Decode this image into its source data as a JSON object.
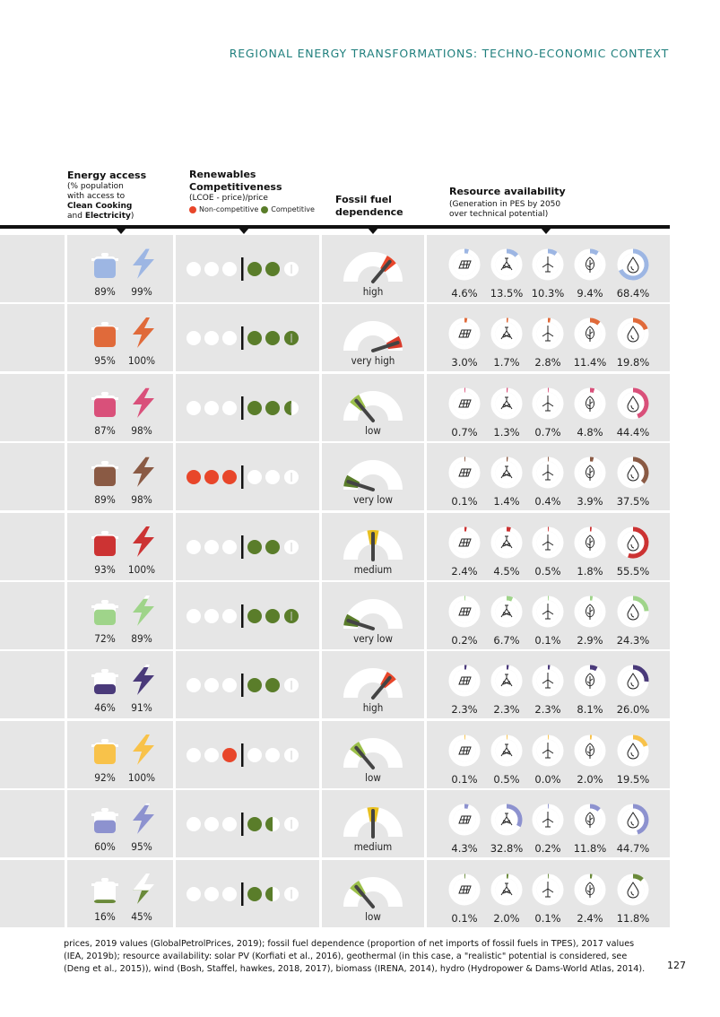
{
  "header": {
    "title": "REGIONAL ENERGY TRANSFORMATIONS: TECHNO-ECONOMIC CONTEXT"
  },
  "columns": {
    "energy_access": {
      "title": "Energy access",
      "sub1": "(% population",
      "sub2": "with access to",
      "sub3": "Clean Cooking",
      "sub4": "and",
      "sub5": "Electricity",
      "sub6": ")"
    },
    "renewables": {
      "title1": "Renewables",
      "title2": "Competitiveness",
      "sub": "(LCOE - price)/price",
      "legend_non": "Non-competitive",
      "legend_comp": "Competitive"
    },
    "fossil": {
      "title1": "Fossil fuel",
      "title2": "dependence"
    },
    "resource": {
      "title": "Resource availability",
      "sub1": "(Generation in PES by 2050",
      "sub2": "over technical potential)"
    }
  },
  "colors": {
    "red": "#e8462a",
    "green": "#5a7d2a",
    "grey_dot": "#ffffff",
    "gauge_track": "#ffffff"
  },
  "rows": [
    {
      "color": "#9db6e3",
      "cooking": "89%",
      "electricity": "99%",
      "reds": 0,
      "greens": 2,
      "half": false,
      "gauge_level": "high",
      "gauge_color": "#e8462a",
      "gauge_angle": 40,
      "resources": [
        "4.6%",
        "13.5%",
        "10.3%",
        "9.4%",
        "68.4%"
      ],
      "res_values": [
        4.6,
        13.5,
        10.3,
        9.4,
        68.4
      ]
    },
    {
      "color": "#e06a3a",
      "cooking": "95%",
      "electricity": "100%",
      "reds": 0,
      "greens": 3,
      "half": false,
      "gauge_level": "very high",
      "gauge_color": "#d83a2a",
      "gauge_angle": 72,
      "resources": [
        "3.0%",
        "1.7%",
        "2.8%",
        "11.4%",
        "19.8%"
      ],
      "res_values": [
        3.0,
        1.7,
        2.8,
        11.4,
        19.8
      ]
    },
    {
      "color": "#d9507a",
      "cooking": "87%",
      "electricity": "98%",
      "reds": 0,
      "greens": 2,
      "half": true,
      "gauge_level": "low",
      "gauge_color": "#9cc04a",
      "gauge_angle": -40,
      "resources": [
        "0.7%",
        "1.3%",
        "0.7%",
        "4.8%",
        "44.4%"
      ],
      "res_values": [
        0.7,
        1.3,
        0.7,
        4.8,
        44.4
      ]
    },
    {
      "color": "#8a5a44",
      "cooking": "89%",
      "electricity": "98%",
      "reds": 3,
      "greens": 0,
      "half": false,
      "gauge_level": "very low",
      "gauge_color": "#5a7d2a",
      "gauge_angle": -72,
      "resources": [
        "0.1%",
        "1.4%",
        "0.4%",
        "3.9%",
        "37.5%"
      ],
      "res_values": [
        0.1,
        1.4,
        0.4,
        3.9,
        37.5
      ]
    },
    {
      "color": "#cc3333",
      "cooking": "93%",
      "electricity": "100%",
      "reds": 0,
      "greens": 2,
      "half": false,
      "gauge_level": "medium",
      "gauge_color": "#e8c020",
      "gauge_angle": 0,
      "resources": [
        "2.4%",
        "4.5%",
        "0.5%",
        "1.8%",
        "55.5%"
      ],
      "res_values": [
        2.4,
        4.5,
        0.5,
        1.8,
        55.5
      ]
    },
    {
      "color": "#9fd48a",
      "cooking": "72%",
      "electricity": "89%",
      "reds": 0,
      "greens": 3,
      "half": false,
      "gauge_level": "very low",
      "gauge_color": "#5a7d2a",
      "gauge_angle": -72,
      "resources": [
        "0.2%",
        "6.7%",
        "0.1%",
        "2.9%",
        "24.3%"
      ],
      "res_values": [
        0.2,
        6.7,
        0.1,
        2.9,
        24.3
      ]
    },
    {
      "color": "#4a3a7a",
      "cooking": "46%",
      "electricity": "91%",
      "reds": 0,
      "greens": 2,
      "half": false,
      "gauge_level": "high",
      "gauge_color": "#e8462a",
      "gauge_angle": 40,
      "resources": [
        "2.3%",
        "2.3%",
        "2.3%",
        "8.1%",
        "26.0%"
      ],
      "res_values": [
        2.3,
        2.3,
        2.3,
        8.1,
        26.0
      ]
    },
    {
      "color": "#f8c24a",
      "cooking": "92%",
      "electricity": "100%",
      "reds": 1,
      "greens": 0,
      "half": false,
      "gauge_level": "low",
      "gauge_color": "#9cc04a",
      "gauge_angle": -40,
      "resources": [
        "0.1%",
        "0.5%",
        "0.0%",
        "2.0%",
        "19.5%"
      ],
      "res_values": [
        0.1,
        0.5,
        0.0,
        2.0,
        19.5
      ]
    },
    {
      "color": "#8d92cf",
      "cooking": "60%",
      "electricity": "95%",
      "reds": 0,
      "greens": 1,
      "half": true,
      "gauge_level": "medium",
      "gauge_color": "#e8c020",
      "gauge_angle": 0,
      "resources": [
        "4.3%",
        "32.8%",
        "0.2%",
        "11.8%",
        "44.7%"
      ],
      "res_values": [
        4.3,
        32.8,
        0.2,
        11.8,
        44.7
      ]
    },
    {
      "color": "#6a8a3a",
      "cooking": "16%",
      "electricity": "45%",
      "reds": 0,
      "greens": 1,
      "half": true,
      "gauge_level": "low",
      "gauge_color": "#9cc04a",
      "gauge_angle": -40,
      "resources": [
        "0.1%",
        "2.0%",
        "0.1%",
        "2.4%",
        "11.8%"
      ],
      "res_values": [
        0.1,
        2.0,
        0.1,
        2.4,
        11.8
      ]
    }
  ],
  "footer": {
    "text": "prices, 2019 values (GlobalPetrolPrices, 2019); fossil fuel dependence (proportion of net imports of fossil fuels in TPES), 2017 values (IEA, 2019b); resource availability: solar PV (Korfiati et al., 2016), geothermal (in this case, a \"realistic\" potential is considered, see (Deng et al., 2015)), wind (Bosh, Staffel, hawkes, 2018, 2017), biomass (IRENA, 2014), hydro (Hydropower & Dams-World Atlas, 2014)."
  },
  "page_number": "127"
}
